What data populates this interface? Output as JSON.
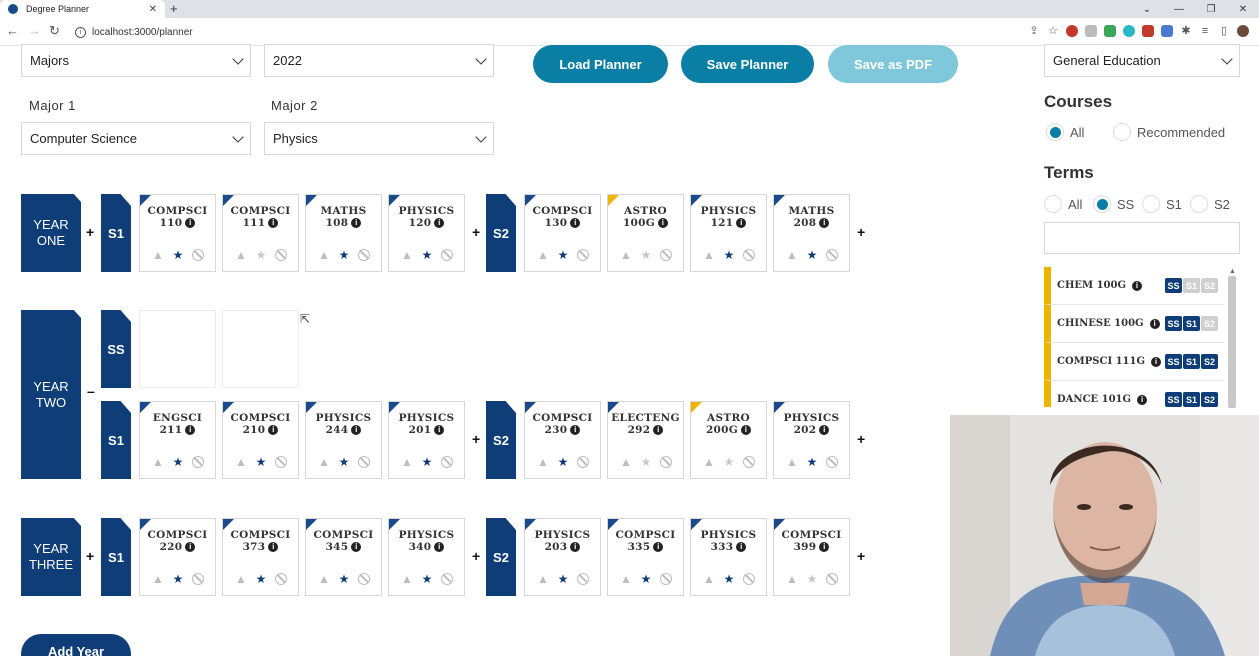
{
  "browser": {
    "tab_title": "Degree Planner",
    "url": "localhost:3000/planner"
  },
  "filters": {
    "category": "Majors",
    "year": "2022",
    "major1_label": "Major 1",
    "major1": "Computer Science",
    "major2_label": "Major 2",
    "major2": "Physics"
  },
  "buttons": {
    "load": "Load Planner",
    "save": "Save Planner",
    "pdf": "Save as PDF",
    "add_year": "Add Year"
  },
  "plan": {
    "y1": {
      "l1": "YEAR",
      "l2": "ONE",
      "s_a": "S1",
      "s_b": "S2",
      "a": [
        {
          "c1": "COMPSCI",
          "c2": "110"
        },
        {
          "c1": "COMPSCI",
          "c2": "111"
        },
        {
          "c1": "MATHS",
          "c2": "108"
        },
        {
          "c1": "PHYSICS",
          "c2": "120"
        }
      ],
      "b": [
        {
          "c1": "COMPSCI",
          "c2": "130"
        },
        {
          "c1": "ASTRO",
          "c2": "100G"
        },
        {
          "c1": "PHYSICS",
          "c2": "121"
        },
        {
          "c1": "MATHS",
          "c2": "208"
        }
      ]
    },
    "y2": {
      "l1": "YEAR",
      "l2": "TWO",
      "s_ss": "SS",
      "s_a": "S1",
      "s_b": "S2",
      "a": [
        {
          "c1": "ENGSCI",
          "c2": "211"
        },
        {
          "c1": "COMPSCI",
          "c2": "210"
        },
        {
          "c1": "PHYSICS",
          "c2": "244"
        },
        {
          "c1": "PHYSICS",
          "c2": "201"
        }
      ],
      "b": [
        {
          "c1": "COMPSCI",
          "c2": "230"
        },
        {
          "c1": "ELECTENG",
          "c2": "292"
        },
        {
          "c1": "ASTRO",
          "c2": "200G"
        },
        {
          "c1": "PHYSICS",
          "c2": "202"
        }
      ]
    },
    "y3": {
      "l1": "YEAR",
      "l2": "THREE",
      "s_a": "S1",
      "s_b": "S2",
      "a": [
        {
          "c1": "COMPSCI",
          "c2": "220"
        },
        {
          "c1": "COMPSCI",
          "c2": "373"
        },
        {
          "c1": "COMPSCI",
          "c2": "345"
        },
        {
          "c1": "PHYSICS",
          "c2": "340"
        }
      ],
      "b": [
        {
          "c1": "PHYSICS",
          "c2": "203"
        },
        {
          "c1": "COMPSCI",
          "c2": "335"
        },
        {
          "c1": "PHYSICS",
          "c2": "333"
        },
        {
          "c1": "COMPSCI",
          "c2": "399"
        }
      ]
    }
  },
  "panel": {
    "category": "General Education",
    "courses_heading": "Courses",
    "courses_all": "All",
    "courses_recommended": "Recommended",
    "terms_heading": "Terms",
    "terms": [
      "All",
      "SS",
      "S1",
      "S2"
    ],
    "list": [
      {
        "name": "CHEM 100G",
        "t1": "SS",
        "t2": "S1",
        "t3": "S2"
      },
      {
        "name": "CHINESE 100G",
        "t1": "SS",
        "t2": "S1",
        "t3": "S2"
      },
      {
        "name": "COMPSCI 111G",
        "t1": "SS",
        "t2": "S1",
        "t3": "S2"
      },
      {
        "name": "DANCE 101G",
        "t1": "SS",
        "t2": "S1",
        "t3": "S2"
      }
    ]
  },
  "colors": {
    "primary": "#0e3d78",
    "button": "#0a7ea4",
    "button_disabled": "#7fc7db",
    "gened_accent": "#f0b400"
  }
}
